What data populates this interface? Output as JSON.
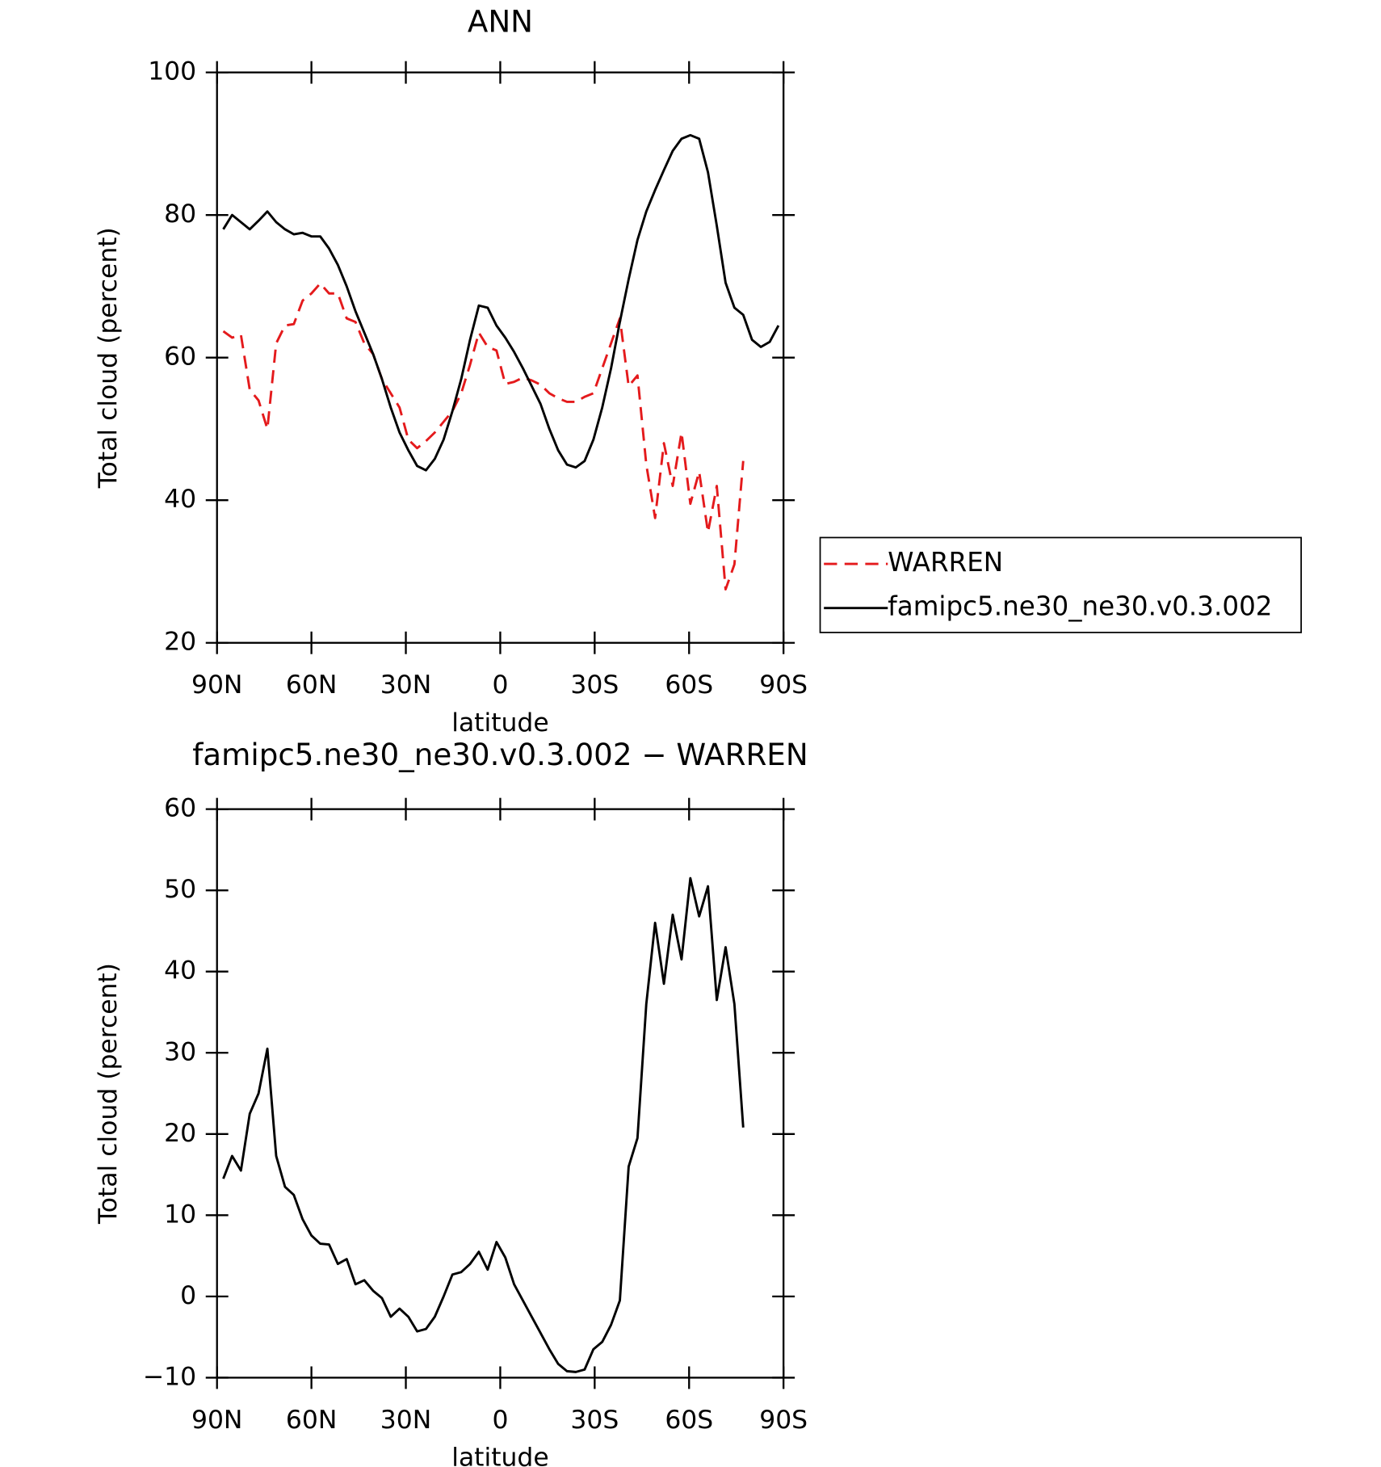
{
  "chart_data": [
    {
      "type": "line",
      "title": "ANN",
      "x_label": "latitude",
      "y_label": "Total cloud (percent)",
      "x": [
        88,
        85.2,
        82.4,
        79.6,
        76.8,
        74,
        71.2,
        68.4,
        65.6,
        62.8,
        60,
        57.2,
        54.4,
        51.6,
        48.8,
        46,
        43.2,
        40.4,
        37.6,
        34.8,
        32,
        29.2,
        26.4,
        23.6,
        20.8,
        18,
        15.2,
        12.4,
        9.6,
        6.8,
        4,
        1.2,
        -1.6,
        -4.4,
        -7.2,
        -10,
        -12.8,
        -15.6,
        -18.4,
        -21.2,
        -24,
        -26.8,
        -29.6,
        -32.4,
        -35.2,
        -38,
        -40.8,
        -43.6,
        -46.4,
        -49.2,
        -52,
        -54.8,
        -57.6,
        -60.4,
        -63.2,
        -66,
        -68.8,
        -71.6,
        -74.4,
        -77.2,
        -80,
        -82.8,
        -85.6,
        -88.4
      ],
      "xlim": [
        90,
        -90
      ],
      "xticks": [
        {
          "value": 90,
          "label": "90N"
        },
        {
          "value": 60,
          "label": "60N"
        },
        {
          "value": 30,
          "label": "30N"
        },
        0,
        {
          "value": -30,
          "label": "30S"
        },
        {
          "value": -60,
          "label": "60S"
        },
        {
          "value": -90,
          "label": "90S"
        }
      ],
      "ylim": [
        20,
        100
      ],
      "yticks": [
        20,
        40,
        60,
        80,
        100
      ],
      "legend": "outside-right",
      "series": [
        {
          "name": "WARREN",
          "color": "#e41a1c",
          "dashed": true,
          "values": [
            63.7,
            62.8,
            63.2,
            55.5,
            54,
            50,
            62,
            64.5,
            64.7,
            68,
            69,
            70.4,
            69,
            69,
            65.5,
            65,
            62,
            60.5,
            57,
            55,
            53,
            48.5,
            47.3,
            48.3,
            49.5,
            51,
            52.5,
            55,
            59,
            63.5,
            61.5,
            61,
            56.3,
            56.6,
            57.2,
            56.8,
            56.2,
            55,
            54.3,
            53.8,
            53.8,
            54.5,
            55,
            58.5,
            62,
            65.5,
            56,
            57.5,
            45,
            37.5,
            48,
            42,
            49.5,
            39.5,
            44,
            35.5,
            42,
            27.5,
            31,
            45.5,
            null,
            null,
            null,
            null
          ]
        },
        {
          "name": "famipc5.ne30_ne30.v0.3.002",
          "color": "#000000",
          "dashed": false,
          "values": [
            78,
            80,
            79,
            78,
            79.2,
            80.5,
            79,
            78,
            77.3,
            77.5,
            77,
            77,
            75.3,
            73,
            70,
            66.5,
            63.5,
            60.5,
            57,
            53,
            49.5,
            47,
            44.8,
            44.2,
            45.8,
            48.5,
            52.5,
            57,
            62.5,
            67.3,
            67,
            64.5,
            62.8,
            60.8,
            58.5,
            56,
            53.5,
            50,
            47,
            45,
            44.6,
            45.5,
            48.5,
            53,
            58.5,
            65,
            71,
            76.5,
            80.5,
            83.5,
            86.3,
            89,
            90.7,
            91.2,
            90.7,
            86,
            78.5,
            70.5,
            67,
            66,
            62.5,
            61.5,
            62.2,
            64.5
          ]
        }
      ]
    },
    {
      "type": "line",
      "title": "famipc5.ne30_ne30.v0.3.002 − WARREN",
      "x_label": "latitude",
      "y_label": "Total cloud (percent)",
      "x": [
        88,
        85.2,
        82.4,
        79.6,
        76.8,
        74,
        71.2,
        68.4,
        65.6,
        62.8,
        60,
        57.2,
        54.4,
        51.6,
        48.8,
        46,
        43.2,
        40.4,
        37.6,
        34.8,
        32,
        29.2,
        26.4,
        23.6,
        20.8,
        18,
        15.2,
        12.4,
        9.6,
        6.8,
        4,
        1.2,
        -1.6,
        -4.4,
        -7.2,
        -10,
        -12.8,
        -15.6,
        -18.4,
        -21.2,
        -24,
        -26.8,
        -29.6,
        -32.4,
        -35.2,
        -38,
        -40.8,
        -43.6,
        -46.4,
        -49.2,
        -52,
        -54.8,
        -57.6,
        -60.4,
        -63.2,
        -66,
        -68.8,
        -71.6,
        -74.4,
        -77.2
      ],
      "xlim": [
        90,
        -90
      ],
      "xticks": [
        {
          "value": 90,
          "label": "90N"
        },
        {
          "value": 60,
          "label": "60N"
        },
        {
          "value": 30,
          "label": "30N"
        },
        0,
        {
          "value": -30,
          "label": "30S"
        },
        {
          "value": -60,
          "label": "60S"
        },
        {
          "value": -90,
          "label": "90S"
        }
      ],
      "ylim": [
        -10,
        60
      ],
      "yticks": [
        {
          "value": -10,
          "label": "−10"
        },
        0,
        10,
        20,
        30,
        40,
        50,
        60
      ],
      "series": [
        {
          "color": "#000000",
          "dashed": false,
          "values": [
            14.5,
            17.3,
            15.5,
            22.5,
            25,
            30.5,
            17.3,
            13.5,
            12.5,
            9.5,
            7.5,
            6.5,
            6.4,
            4,
            4.6,
            1.5,
            2,
            0.7,
            -0.2,
            -2.5,
            -1.5,
            -2.5,
            -4.3,
            -4,
            -2.5,
            0,
            2.7,
            3,
            4,
            5.5,
            3.3,
            6.7,
            4.8,
            1.5,
            -0.5,
            -2.5,
            -4.5,
            -6.5,
            -8.3,
            -9.2,
            -9.3,
            -9,
            -6.5,
            -5.6,
            -3.5,
            -0.5,
            16,
            19.5,
            36,
            46,
            38.5,
            47,
            41.5,
            51.5,
            46.8,
            50.5,
            36.5,
            43,
            36,
            20.8
          ]
        }
      ]
    }
  ]
}
